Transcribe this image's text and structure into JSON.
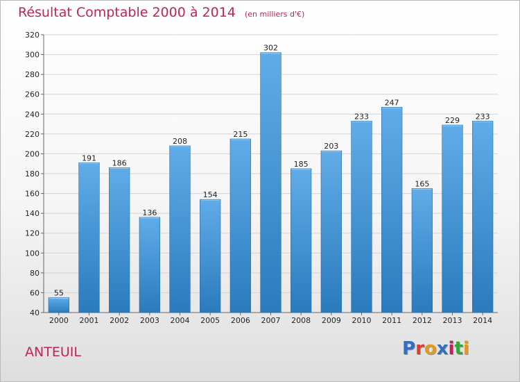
{
  "title": "Résultat Comptable 2000 à 2014",
  "subtitle": "(en milliers d'€)",
  "commune": "ANTEUIL",
  "logo": {
    "text": "Proxiti",
    "colors": [
      "#2f6fc4",
      "#e23b2e",
      "#e39a1a",
      "#2f6fc4",
      "#c2225a",
      "#2fa83c",
      "#e39a1a"
    ]
  },
  "colors": {
    "bar_top": "#60ace8",
    "bar_bottom": "#2a7bbd",
    "title": "#c2225a",
    "grid": "#d4d4d4"
  },
  "chart_data": {
    "type": "bar",
    "title": "Résultat Comptable 2000 à 2014",
    "subtitle": "(en milliers d'€)",
    "xlabel": "",
    "ylabel": "",
    "categories": [
      "2000",
      "2001",
      "2002",
      "2003",
      "2004",
      "2005",
      "2006",
      "2007",
      "2008",
      "2009",
      "2010",
      "2011",
      "2012",
      "2013",
      "2014"
    ],
    "values": [
      55,
      191,
      186,
      136,
      208,
      154,
      215,
      302,
      185,
      203,
      233,
      247,
      165,
      229,
      233
    ],
    "ylim": [
      40,
      320
    ],
    "yticks": [
      40,
      60,
      80,
      100,
      120,
      140,
      160,
      180,
      200,
      220,
      240,
      260,
      280,
      300,
      320
    ],
    "grid": true,
    "legend": "none"
  }
}
